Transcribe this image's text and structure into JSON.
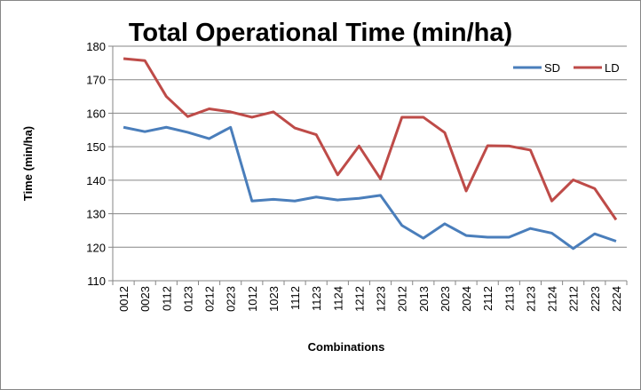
{
  "chart_data": {
    "type": "line",
    "title": "Total Operational Time (min/ha)",
    "x_label": "Combinations",
    "y_label": "Time (min/ha)",
    "categories": [
      "0012",
      "0023",
      "0112",
      "0123",
      "0212",
      "0223",
      "1012",
      "1023",
      "1112",
      "1123",
      "1124",
      "1212",
      "1223",
      "2012",
      "2013",
      "2023",
      "2024",
      "2112",
      "2113",
      "2123",
      "2124",
      "2212",
      "2223",
      "2224"
    ],
    "series": [
      {
        "name": "SD",
        "color": "#4a7ebb",
        "values": [
          155.8,
          154.5,
          155.8,
          154.3,
          152.4,
          155.8,
          133.8,
          134.3,
          133.8,
          135,
          134.1,
          134.6,
          135.5,
          126.5,
          122.7,
          127,
          123.5,
          123,
          123,
          125.6,
          124.2,
          119.6,
          124,
          121.8
        ]
      },
      {
        "name": "LD",
        "color": "#be4b48",
        "values": [
          176.3,
          175.7,
          165,
          159,
          161.3,
          160.4,
          158.8,
          160.4,
          155.6,
          153.6,
          141.6,
          150.2,
          140.4,
          158.8,
          158.8,
          154.2,
          136.8,
          150.3,
          150.2,
          149,
          133.8,
          140.1,
          137.5,
          128.2
        ]
      }
    ],
    "ylim": [
      110,
      180
    ],
    "yticks": [
      110,
      120,
      130,
      140,
      150,
      160,
      170,
      180
    ],
    "grid": true,
    "legend": "top-right"
  }
}
